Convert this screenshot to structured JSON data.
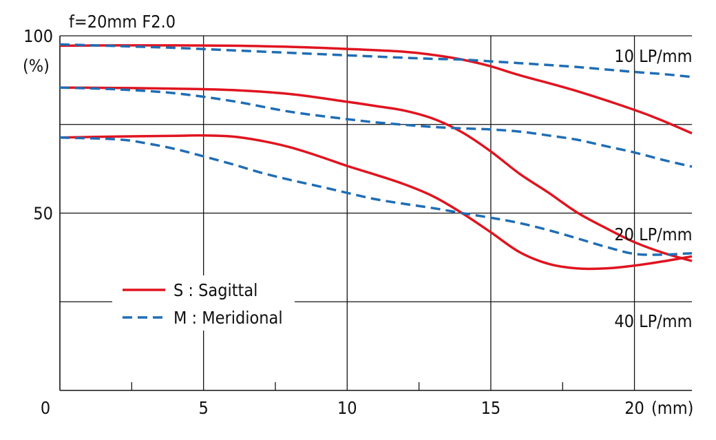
{
  "chart_data": {
    "type": "line",
    "title": "f=20mm  F2.0",
    "ylabel": "(%)",
    "xlabel": "(mm)",
    "xlim": [
      0,
      22
    ],
    "ylim": [
      0,
      100
    ],
    "xticks": [
      0,
      5,
      10,
      15,
      20
    ],
    "minor_xticks": [
      2.5,
      7.5,
      12.5,
      17.5
    ],
    "yticks": [
      50,
      100
    ],
    "y_gridlines": [
      25,
      50,
      75,
      100
    ],
    "x_gridlines": [
      5,
      10,
      15,
      20
    ],
    "legend": {
      "position": "bottom-left",
      "entries": [
        {
          "label": "S : Sagittal",
          "color": "#e0141f",
          "style": "solid"
        },
        {
          "label": "M : Meridional",
          "color": "#1f6db5",
          "style": "dashed"
        }
      ]
    },
    "annotations": [
      {
        "text": "10 LP/mm",
        "x": 19.3,
        "y": 92.6
      },
      {
        "text": "20 LP/mm",
        "x": 19.3,
        "y": 42.3
      },
      {
        "text": "40 LP/mm",
        "x": 19.3,
        "y": 17.9
      }
    ],
    "series": [
      {
        "name": "10 LP/mm S",
        "type": "S",
        "x": [
          0,
          2,
          4,
          6,
          8,
          10,
          12,
          13,
          14,
          15,
          16,
          18,
          20,
          21,
          22
        ],
        "y": [
          97.2,
          97.3,
          97.3,
          97.2,
          96.9,
          96.3,
          95.5,
          94.6,
          93.3,
          91.4,
          88.9,
          84.4,
          79.1,
          76.0,
          72.5
        ]
      },
      {
        "name": "10 LP/mm M",
        "type": "M",
        "x": [
          0,
          2,
          4,
          6,
          8,
          10,
          12,
          13,
          14,
          15,
          16,
          18,
          20,
          21,
          22
        ],
        "y": [
          97.6,
          97.1,
          96.6,
          95.9,
          95.2,
          94.5,
          93.8,
          93.5,
          93.3,
          92.8,
          92.3,
          91.2,
          89.8,
          89.2,
          88.4
        ]
      },
      {
        "name": "20 LP/mm S",
        "type": "S",
        "x": [
          0,
          2,
          4,
          6,
          8,
          10,
          11,
          12,
          13,
          14,
          15,
          16,
          17,
          18,
          19,
          20,
          21,
          22
        ],
        "y": [
          85.4,
          85.3,
          85.1,
          84.7,
          83.6,
          81.4,
          80.2,
          78.9,
          76.6,
          72.8,
          67.4,
          61.1,
          55.8,
          50.2,
          45.8,
          41.8,
          38.8,
          36.5
        ]
      },
      {
        "name": "20 LP/mm M",
        "type": "M",
        "x": [
          0,
          2,
          4,
          6,
          8,
          10,
          11,
          12,
          13,
          14,
          15,
          16,
          17,
          18,
          19,
          20,
          21,
          22
        ],
        "y": [
          85.4,
          84.9,
          83.8,
          81.6,
          78.6,
          76.5,
          75.6,
          74.9,
          74.3,
          73.9,
          73.6,
          73.0,
          71.9,
          70.7,
          68.9,
          67.1,
          65.0,
          63.1
        ]
      },
      {
        "name": "40 LP/mm S",
        "type": "S",
        "x": [
          0,
          2,
          4,
          5,
          6,
          7,
          8,
          9,
          10,
          11,
          12,
          13,
          14,
          15,
          16,
          17,
          18,
          19,
          20,
          21,
          22
        ],
        "y": [
          71.3,
          71.6,
          71.8,
          71.9,
          71.6,
          70.4,
          68.6,
          66.1,
          63.3,
          60.8,
          58.1,
          54.7,
          50.0,
          44.6,
          39.0,
          35.7,
          34.4,
          34.4,
          35.2,
          36.4,
          37.8
        ]
      },
      {
        "name": "40 LP/mm M",
        "type": "M",
        "x": [
          0,
          2,
          3,
          4,
          5,
          6,
          7,
          8,
          9,
          10,
          11,
          12,
          13,
          14,
          15,
          16,
          17,
          18,
          19,
          20,
          21,
          22
        ],
        "y": [
          71.3,
          70.8,
          69.7,
          68.1,
          66.0,
          63.8,
          61.4,
          59.4,
          57.6,
          55.7,
          53.9,
          52.6,
          51.4,
          50.0,
          48.7,
          47.2,
          45.2,
          42.9,
          40.5,
          38.5,
          38.3,
          38.7
        ]
      }
    ]
  }
}
